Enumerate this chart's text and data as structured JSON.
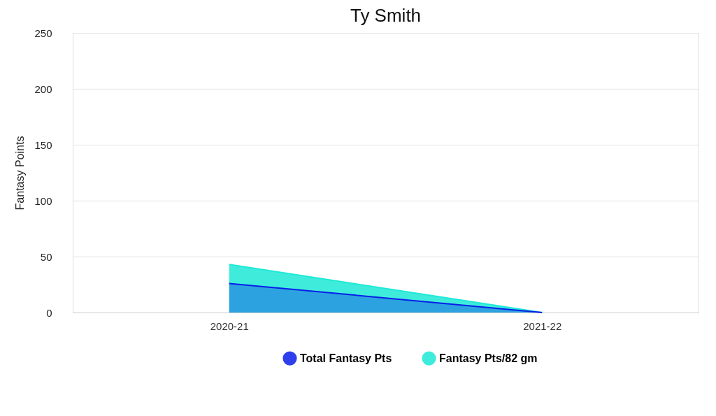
{
  "chart_data": {
    "type": "area",
    "title": "Ty Smith",
    "ylabel": "Fantasy Points",
    "categories": [
      "2020-21",
      "2021-22"
    ],
    "series": [
      {
        "name": "Total Fantasy Pts",
        "color": "#0a1ee8",
        "values": [
          26,
          0
        ]
      },
      {
        "name": "Fantasy Pts/82 gm",
        "color": "#1de9d6",
        "values": [
          43,
          0
        ]
      }
    ],
    "ylim": [
      0,
      250
    ],
    "yticks": [
      0,
      50,
      100,
      150,
      200,
      250
    ],
    "grid": "y",
    "legend": "bottom"
  }
}
